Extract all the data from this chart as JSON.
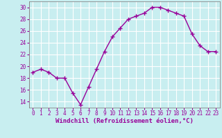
{
  "x": [
    0,
    1,
    2,
    3,
    4,
    5,
    6,
    7,
    8,
    9,
    10,
    11,
    12,
    13,
    14,
    15,
    16,
    17,
    18,
    19,
    20,
    21,
    22,
    23
  ],
  "y": [
    19.0,
    19.5,
    19.0,
    18.0,
    18.0,
    15.5,
    13.5,
    16.5,
    19.5,
    22.5,
    25.0,
    26.5,
    28.0,
    28.5,
    29.0,
    30.0,
    30.0,
    29.5,
    29.0,
    28.5,
    25.5,
    23.5,
    22.5,
    22.5
  ],
  "line_color": "#990099",
  "marker": "+",
  "marker_size": 4,
  "marker_linewidth": 1.0,
  "background_color": "#c8eef0",
  "grid_color": "#ffffff",
  "xlabel": "Windchill (Refroidissement éolien,°C)",
  "xlabel_color": "#990099",
  "xlabel_fontsize": 6.5,
  "tick_color": "#990099",
  "tick_fontsize": 5.5,
  "xlim": [
    -0.5,
    23.5
  ],
  "ylim": [
    13,
    31
  ],
  "yticks": [
    14,
    16,
    18,
    20,
    22,
    24,
    26,
    28,
    30
  ],
  "xtick_labels": [
    "0",
    "1",
    "2",
    "3",
    "4",
    "5",
    "6",
    "7",
    "8",
    "9",
    "10",
    "11",
    "12",
    "13",
    "14",
    "15",
    "16",
    "17",
    "18",
    "19",
    "20",
    "21",
    "22",
    "23"
  ]
}
